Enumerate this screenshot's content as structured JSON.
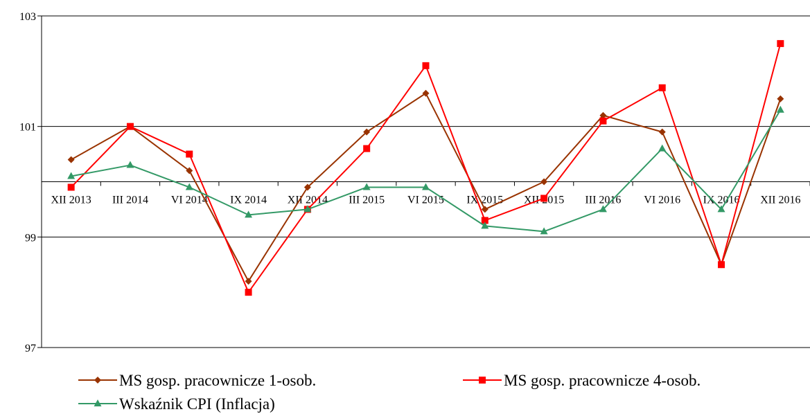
{
  "chart_data": {
    "type": "line",
    "title": "",
    "xlabel": "",
    "ylabel": "",
    "categories": [
      "XII 2013",
      "III 2014",
      "VI 2014",
      "IX 2014",
      "XII 2014",
      "III 2015",
      "VI 2015",
      "IX 2015",
      "XII 2015",
      "III 2016",
      "VI 2016",
      "IX 2016",
      "XII 2016"
    ],
    "ylim": [
      97,
      103
    ],
    "yticks": [
      "97",
      "99",
      "101",
      "103"
    ],
    "x_axis_crosses_at": 100,
    "grid": "horizontal",
    "legend_position": "bottom",
    "series": [
      {
        "name": "MS gosp. pracownicze 1-osob.",
        "color": "#993300",
        "marker": "diamond",
        "values": [
          100.4,
          101.0,
          100.2,
          98.2,
          99.9,
          100.9,
          101.6,
          99.5,
          100.0,
          101.2,
          100.9,
          98.5,
          101.5
        ]
      },
      {
        "name": "MS gosp. pracownicze 4-osob.",
        "color": "#ff0000",
        "marker": "square",
        "values": [
          99.9,
          101.0,
          100.5,
          98.0,
          99.5,
          100.6,
          102.1,
          99.3,
          99.7,
          101.1,
          101.7,
          98.5,
          102.5
        ]
      },
      {
        "name": "Wskaźnik CPI (Inflacja)",
        "color": "#339966",
        "marker": "triangle",
        "values": [
          100.1,
          100.3,
          99.9,
          99.4,
          99.5,
          99.9,
          99.9,
          99.2,
          99.1,
          99.5,
          100.6,
          99.5,
          101.3
        ]
      }
    ]
  }
}
